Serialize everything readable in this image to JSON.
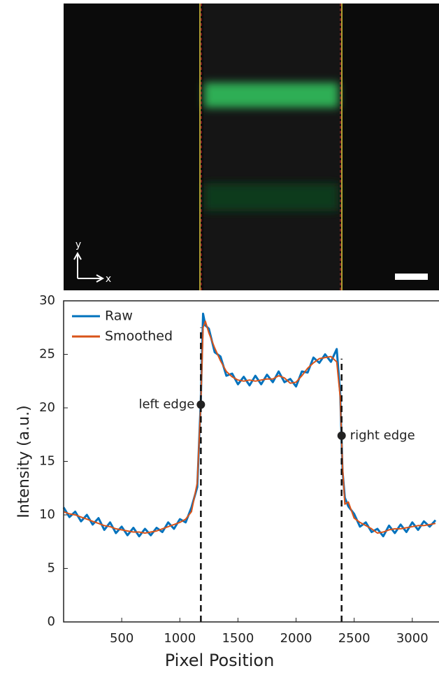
{
  "image": {
    "y_label": "y",
    "x_label": "x"
  },
  "chart_data": {
    "type": "line",
    "x": [
      0,
      50,
      100,
      150,
      200,
      250,
      300,
      350,
      400,
      450,
      500,
      550,
      600,
      650,
      700,
      750,
      800,
      850,
      900,
      950,
      1000,
      1050,
      1100,
      1150,
      1180,
      1200,
      1220,
      1250,
      1300,
      1350,
      1400,
      1450,
      1500,
      1550,
      1600,
      1650,
      1700,
      1750,
      1800,
      1850,
      1900,
      1950,
      2000,
      2050,
      2100,
      2150,
      2200,
      2250,
      2300,
      2350,
      2380,
      2400,
      2420,
      2450,
      2500,
      2550,
      2600,
      2650,
      2700,
      2750,
      2800,
      2850,
      2900,
      2950,
      3000,
      3050,
      3100,
      3150,
      3200
    ],
    "series": [
      {
        "name": "Raw",
        "color": "#0072bd",
        "values": [
          10.7,
          9.8,
          10.3,
          9.4,
          10.0,
          9.1,
          9.7,
          8.6,
          9.3,
          8.3,
          8.9,
          8.1,
          8.8,
          8.0,
          8.7,
          8.1,
          8.8,
          8.4,
          9.3,
          8.7,
          9.6,
          9.3,
          10.7,
          12.6,
          20.6,
          28.8,
          27.7,
          27.4,
          25.2,
          24.8,
          23.0,
          23.2,
          22.2,
          22.9,
          22.1,
          23.0,
          22.2,
          23.1,
          22.4,
          23.4,
          22.4,
          22.7,
          22.0,
          23.4,
          23.3,
          24.7,
          24.2,
          25.0,
          24.3,
          25.5,
          21.3,
          14.1,
          11.6,
          10.8,
          10.1,
          8.9,
          9.3,
          8.4,
          8.7,
          8.0,
          9.0,
          8.3,
          9.1,
          8.4,
          9.3,
          8.6,
          9.4,
          8.9,
          9.5
        ]
      },
      {
        "name": "Smoothed",
        "color": "#d95319",
        "values": [
          10.3,
          10.1,
          10.0,
          9.8,
          9.6,
          9.4,
          9.2,
          9.0,
          8.9,
          8.7,
          8.6,
          8.5,
          8.4,
          8.4,
          8.3,
          8.4,
          8.5,
          8.7,
          8.9,
          9.1,
          9.3,
          9.6,
          10.3,
          13.0,
          20.3,
          27.5,
          28.1,
          27.0,
          25.6,
          24.4,
          23.4,
          22.9,
          22.6,
          22.5,
          22.6,
          22.5,
          22.6,
          22.7,
          22.7,
          23.0,
          22.8,
          22.3,
          22.4,
          23.0,
          23.7,
          24.2,
          24.6,
          24.7,
          24.8,
          24.3,
          21.0,
          14.5,
          11.0,
          11.2,
          9.7,
          9.3,
          9.0,
          8.7,
          8.3,
          8.4,
          8.6,
          8.7,
          8.7,
          8.8,
          8.9,
          9.0,
          9.0,
          9.1,
          9.2
        ]
      }
    ],
    "annotations": [
      {
        "text": "left edge",
        "x": 1181,
        "y": 20.3
      },
      {
        "text": "right edge",
        "x": 2392,
        "y": 17.4
      }
    ],
    "xlabel": "Pixel Position",
    "ylabel": "Intensity (a.u.)",
    "xlim": [
      0,
      3230
    ],
    "ylim": [
      0,
      30
    ],
    "xticks": [
      500,
      1000,
      1500,
      2000,
      2500,
      3000
    ],
    "yticks": [
      0,
      5,
      10,
      15,
      20,
      25,
      30
    ],
    "legend": "upper-left"
  }
}
